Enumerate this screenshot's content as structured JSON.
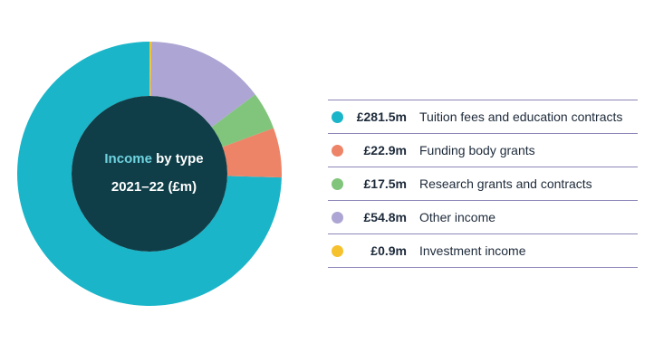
{
  "chart_data": {
    "type": "pie",
    "title_parts": [
      "Income",
      " by type"
    ],
    "subtitle": "2021–22 (£m)",
    "hole_color": "#0f3e48",
    "categories": [
      "Tuition fees and education contracts",
      "Funding body grants",
      "Research grants and contracts",
      "Other income",
      "Investment income"
    ],
    "values": [
      281.5,
      22.9,
      17.5,
      54.8,
      0.9
    ],
    "value_labels": [
      "£281.5m",
      "£22.9m",
      "£17.5m",
      "£54.8m",
      "£0.9m"
    ],
    "colors": [
      "#1ab5c9",
      "#ee8467",
      "#80c57b",
      "#ada5d3",
      "#f6c12e"
    ],
    "start": "top",
    "direction": "counterclockwise",
    "legend_placement": "right"
  }
}
